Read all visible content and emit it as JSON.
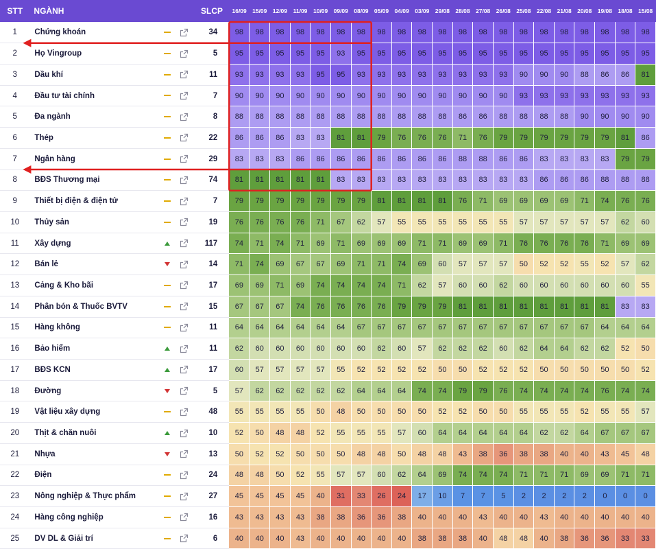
{
  "header": {
    "stt": "STT",
    "name": "NGÀNH",
    "slcp": "SLCP",
    "dates": [
      "16/09",
      "15/09",
      "12/09",
      "11/09",
      "10/09",
      "09/09",
      "08/09",
      "05/09",
      "04/09",
      "03/09",
      "29/08",
      "28/08",
      "27/08",
      "26/08",
      "25/08",
      "22/08",
      "21/08",
      "20/08",
      "19/08",
      "18/08",
      "15/08"
    ]
  },
  "colors": {
    "header_bg": "#6a4ad2",
    "highlight_box": "#e02020",
    "arrow": "#e02020",
    "trend_flat": "#e0aa00",
    "trend_up": "#3a9a3a",
    "trend_down": "#d23333"
  },
  "rows": [
    {
      "stt": "1",
      "name": "Chứng khoán",
      "trend": "flat",
      "icon": "external-link-icon",
      "slcp": "34",
      "values": [
        98,
        98,
        98,
        98,
        98,
        98,
        98,
        98,
        98,
        98,
        98,
        98,
        98,
        98,
        98,
        98,
        98,
        98,
        98,
        98,
        98
      ]
    },
    {
      "stt": "2",
      "name": "Họ Vingroup",
      "trend": "flat",
      "icon": "external-link-icon",
      "slcp": "5",
      "values": [
        95,
        95,
        95,
        95,
        95,
        93,
        95,
        95,
        95,
        95,
        95,
        95,
        95,
        95,
        95,
        95,
        95,
        95,
        95,
        95,
        95
      ]
    },
    {
      "stt": "3",
      "name": "Dầu khí",
      "trend": "flat",
      "icon": "external-link-icon",
      "slcp": "11",
      "values": [
        93,
        93,
        93,
        93,
        95,
        95,
        93,
        93,
        93,
        93,
        93,
        93,
        93,
        93,
        90,
        90,
        90,
        88,
        86,
        86,
        81
      ]
    },
    {
      "stt": "4",
      "name": "Đầu tư tài chính",
      "trend": "flat",
      "icon": "external-link-icon",
      "slcp": "7",
      "values": [
        90,
        90,
        90,
        90,
        90,
        90,
        90,
        90,
        90,
        90,
        90,
        90,
        90,
        90,
        93,
        93,
        93,
        93,
        93,
        93,
        93
      ]
    },
    {
      "stt": "5",
      "name": "Đa ngành",
      "trend": "flat",
      "icon": "external-link-icon",
      "slcp": "8",
      "values": [
        88,
        88,
        88,
        88,
        88,
        88,
        88,
        88,
        88,
        88,
        88,
        86,
        86,
        88,
        88,
        88,
        88,
        90,
        90,
        90,
        90
      ]
    },
    {
      "stt": "6",
      "name": "Thép",
      "trend": "flat",
      "icon": "external-link-icon",
      "slcp": "22",
      "values": [
        86,
        86,
        86,
        83,
        83,
        81,
        81,
        79,
        76,
        76,
        76,
        71,
        76,
        79,
        79,
        79,
        79,
        79,
        79,
        81,
        86
      ]
    },
    {
      "stt": "7",
      "name": "Ngân hàng",
      "trend": "flat",
      "icon": "external-link-icon",
      "slcp": "29",
      "values": [
        83,
        83,
        83,
        86,
        86,
        86,
        86,
        86,
        86,
        86,
        86,
        88,
        88,
        86,
        86,
        83,
        83,
        83,
        83,
        79,
        79
      ]
    },
    {
      "stt": "8",
      "name": "BĐS Thương mại",
      "trend": "flat",
      "icon": "external-link-icon",
      "slcp": "74",
      "values": [
        81,
        81,
        81,
        81,
        81,
        83,
        83,
        83,
        83,
        83,
        83,
        83,
        83,
        83,
        83,
        86,
        86,
        86,
        88,
        88,
        88
      ]
    },
    {
      "stt": "9",
      "name": "Thiết bị điện & điện tử",
      "trend": "flat",
      "icon": "external-link-icon",
      "slcp": "7",
      "values": [
        79,
        79,
        79,
        79,
        79,
        79,
        79,
        81,
        81,
        81,
        81,
        76,
        71,
        69,
        69,
        69,
        69,
        71,
        74,
        76,
        76
      ]
    },
    {
      "stt": "10",
      "name": "Thủy sản",
      "trend": "flat",
      "icon": "external-link-icon",
      "slcp": "19",
      "values": [
        76,
        76,
        76,
        76,
        71,
        67,
        62,
        57,
        55,
        55,
        55,
        55,
        55,
        55,
        57,
        57,
        57,
        57,
        57,
        62,
        60
      ]
    },
    {
      "stt": "11",
      "name": "Xây dựng",
      "trend": "up",
      "icon": "external-link-icon",
      "slcp": "117",
      "values": [
        74,
        71,
        74,
        71,
        69,
        71,
        69,
        69,
        69,
        71,
        71,
        69,
        69,
        71,
        76,
        76,
        76,
        76,
        71,
        69,
        69
      ]
    },
    {
      "stt": "12",
      "name": "Bán lẻ",
      "trend": "down",
      "icon": "external-link-icon",
      "slcp": "14",
      "values": [
        71,
        74,
        69,
        67,
        67,
        69,
        71,
        71,
        74,
        69,
        60,
        57,
        57,
        57,
        50,
        52,
        52,
        55,
        52,
        57,
        62
      ]
    },
    {
      "stt": "13",
      "name": "Cảng & Kho bãi",
      "trend": "flat",
      "icon": "external-link-icon",
      "slcp": "17",
      "values": [
        69,
        69,
        71,
        69,
        74,
        74,
        74,
        74,
        71,
        62,
        57,
        60,
        60,
        62,
        60,
        60,
        60,
        60,
        60,
        60,
        55
      ]
    },
    {
      "stt": "14",
      "name": "Phân bón & Thuốc BVTV",
      "trend": "flat",
      "icon": "external-link-icon",
      "slcp": "15",
      "values": [
        67,
        67,
        67,
        74,
        76,
        76,
        76,
        76,
        79,
        79,
        79,
        81,
        81,
        81,
        81,
        81,
        81,
        81,
        81,
        83,
        83
      ]
    },
    {
      "stt": "15",
      "name": "Hàng không",
      "trend": "flat",
      "icon": "external-link-icon",
      "slcp": "11",
      "values": [
        64,
        64,
        64,
        64,
        64,
        64,
        67,
        67,
        67,
        67,
        67,
        67,
        67,
        67,
        67,
        67,
        67,
        67,
        64,
        64,
        64
      ]
    },
    {
      "stt": "16",
      "name": "Bảo hiểm",
      "trend": "up",
      "icon": "external-link-icon",
      "slcp": "11",
      "values": [
        62,
        60,
        60,
        60,
        60,
        60,
        60,
        62,
        60,
        57,
        62,
        62,
        62,
        60,
        62,
        64,
        64,
        62,
        62,
        52,
        50
      ]
    },
    {
      "stt": "17",
      "name": "BĐS KCN",
      "trend": "up",
      "icon": "external-link-icon",
      "slcp": "17",
      "values": [
        60,
        57,
        57,
        57,
        57,
        55,
        52,
        52,
        52,
        52,
        50,
        50,
        52,
        52,
        52,
        50,
        50,
        50,
        50,
        50,
        52
      ]
    },
    {
      "stt": "18",
      "name": "Đường",
      "trend": "down",
      "icon": "external-link-icon",
      "slcp": "5",
      "values": [
        57,
        62,
        62,
        62,
        62,
        62,
        64,
        64,
        64,
        74,
        74,
        79,
        79,
        76,
        74,
        74,
        74,
        74,
        76,
        74,
        74
      ]
    },
    {
      "stt": "19",
      "name": "Vật liệu xây dựng",
      "trend": "flat",
      "icon": "external-link-icon",
      "slcp": "48",
      "values": [
        55,
        55,
        55,
        55,
        50,
        48,
        50,
        50,
        50,
        50,
        52,
        52,
        50,
        50,
        55,
        55,
        55,
        52,
        55,
        55,
        57
      ]
    },
    {
      "stt": "20",
      "name": "Thịt & chăn nuôi",
      "trend": "up",
      "icon": "external-link-icon",
      "slcp": "10",
      "values": [
        52,
        50,
        48,
        48,
        52,
        55,
        55,
        55,
        57,
        60,
        64,
        64,
        64,
        64,
        64,
        62,
        62,
        64,
        67,
        67,
        67
      ]
    },
    {
      "stt": "21",
      "name": "Nhựa",
      "trend": "down",
      "icon": "external-link-icon",
      "slcp": "13",
      "values": [
        50,
        52,
        52,
        50,
        50,
        50,
        48,
        48,
        50,
        48,
        48,
        43,
        38,
        36,
        38,
        38,
        40,
        40,
        43,
        45,
        48
      ]
    },
    {
      "stt": "22",
      "name": "Điện",
      "trend": "flat",
      "icon": "external-link-icon",
      "slcp": "24",
      "values": [
        48,
        48,
        50,
        52,
        55,
        57,
        57,
        60,
        62,
        64,
        69,
        74,
        74,
        74,
        71,
        71,
        71,
        69,
        69,
        71,
        71
      ]
    },
    {
      "stt": "23",
      "name": "Nông nghiệp & Thực phẩm",
      "trend": "flat",
      "icon": "external-link-icon",
      "slcp": "27",
      "values": [
        45,
        45,
        45,
        45,
        40,
        31,
        33,
        26,
        24,
        17,
        10,
        7,
        7,
        5,
        2,
        2,
        2,
        2,
        0,
        0,
        0
      ]
    },
    {
      "stt": "24",
      "name": "Hàng công nghiệp",
      "trend": "flat",
      "icon": "external-link-icon",
      "slcp": "16",
      "values": [
        43,
        43,
        43,
        43,
        38,
        38,
        36,
        36,
        38,
        40,
        40,
        40,
        43,
        40,
        40,
        43,
        40,
        40,
        40,
        40,
        40
      ]
    },
    {
      "stt": "25",
      "name": "DV DL & Giải trí",
      "trend": "flat",
      "icon": "external-link-icon",
      "slcp": "6",
      "values": [
        40,
        40,
        40,
        43,
        40,
        40,
        40,
        40,
        40,
        38,
        38,
        38,
        40,
        48,
        48,
        40,
        38,
        36,
        36,
        33,
        33
      ]
    }
  ],
  "annotations": {
    "highlight": {
      "from_row": 1,
      "to_row": 8,
      "from_col": 1,
      "to_col": 7
    },
    "arrows": [
      {
        "row": 1
      },
      {
        "row": 7
      }
    ]
  }
}
